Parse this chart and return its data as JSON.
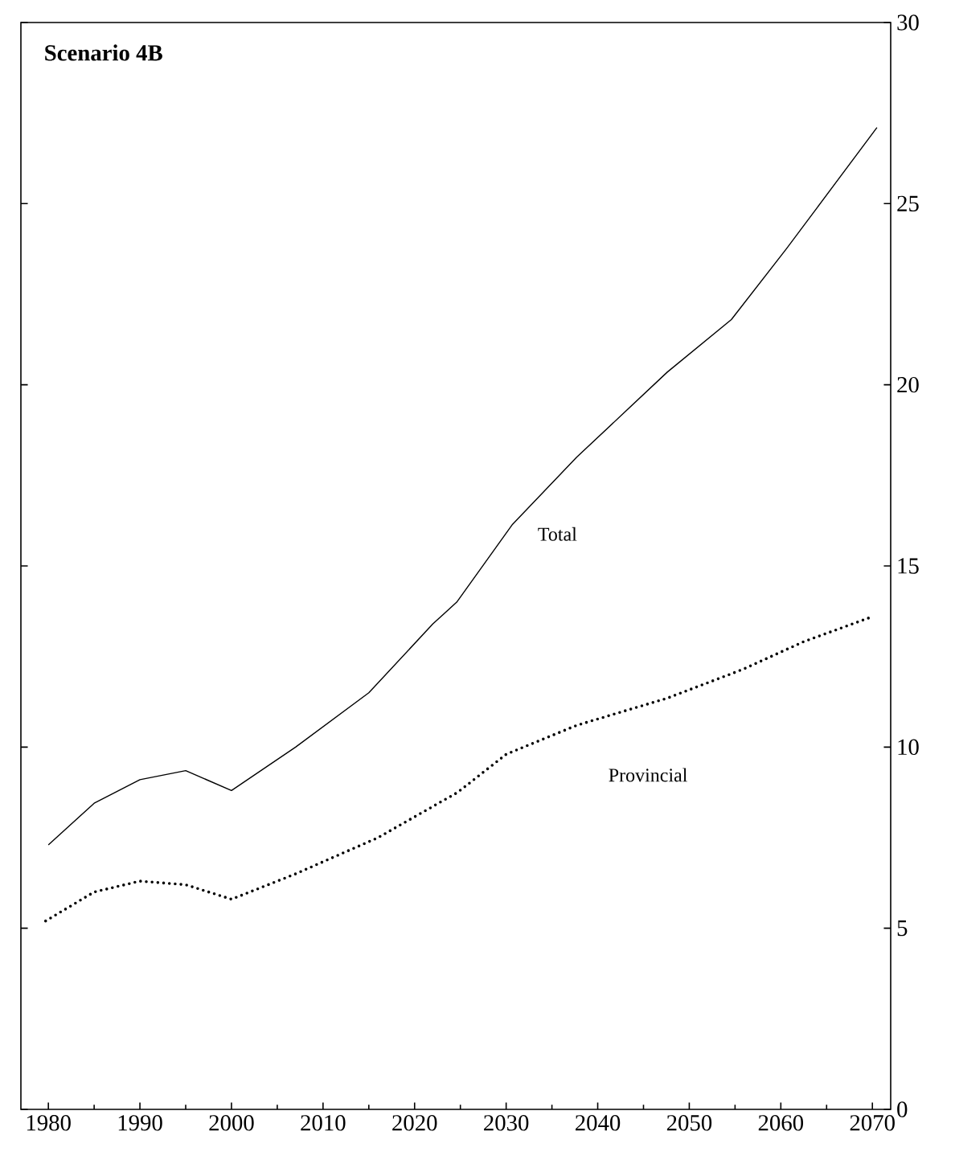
{
  "chart_data": {
    "type": "line",
    "title": "Scenario 4B",
    "xlim": [
      1977,
      2072
    ],
    "ylim": [
      0,
      30
    ],
    "xticks": [
      1980,
      1990,
      2000,
      2010,
      2020,
      2030,
      2040,
      2050,
      2060,
      2070
    ],
    "yticks": [
      0,
      5,
      10,
      15,
      20,
      25,
      30
    ],
    "marker": "none",
    "series": [
      {
        "name": "Total",
        "color": "#000000",
        "line_style": "solid",
        "x": [
          1980,
          1985,
          1990,
          1995,
          2000,
          2007,
          2015,
          2022,
          2024.6,
          2030.7,
          2037.7,
          2047.6,
          2054.6,
          2060.6,
          2070.5
        ],
        "values": [
          7.3,
          8.45,
          9.1,
          9.35,
          8.8,
          10.0,
          11.5,
          13.4,
          14.0,
          16.15,
          18.0,
          20.35,
          21.8,
          23.75,
          27.1
        ]
      },
      {
        "name": "Provincial",
        "color": "#000000",
        "line_style": "dotted",
        "x": [
          1979.7,
          1985,
          1990,
          1995,
          2000,
          2007,
          2016,
          2024.7,
          2030,
          2037.7,
          2047.6,
          2055.9,
          2062.4,
          2070
        ],
        "values": [
          5.2,
          6.0,
          6.3,
          6.2,
          5.8,
          6.5,
          7.5,
          8.75,
          9.8,
          10.6,
          11.35,
          12.15,
          12.9,
          13.6
        ]
      }
    ]
  }
}
